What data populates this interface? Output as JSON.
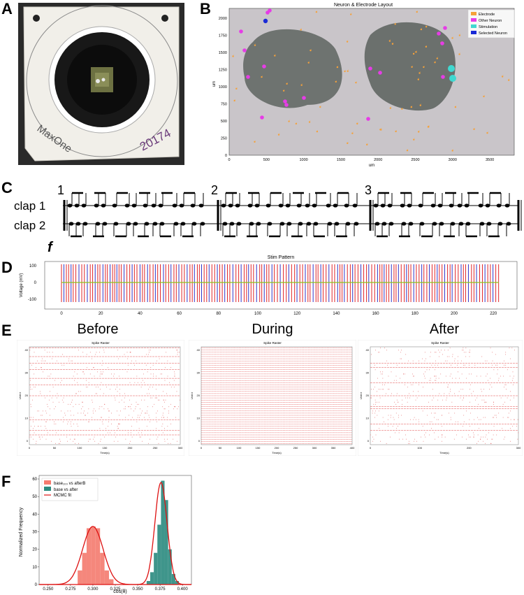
{
  "panels": {
    "a": "A",
    "b": "B",
    "c": "C",
    "d": "D",
    "e": "E",
    "f": "F"
  },
  "chip": {
    "brand": "MaxOne",
    "serial": "20174"
  },
  "layout_plot": {
    "title": "Neuron & Electrode Layout",
    "xlabel": "um",
    "ylabel": "um",
    "xticks": [
      "0",
      "500",
      "1000",
      "1500",
      "2000",
      "2500",
      "3000",
      "3500"
    ],
    "yticks": [
      "0",
      "250",
      "500",
      "750",
      "1000",
      "1250",
      "1500",
      "1750",
      "2000"
    ],
    "legend": [
      {
        "label": "Electrode",
        "color": "#f5a13a"
      },
      {
        "label": "Other Neuron",
        "color": "#e63ce6"
      },
      {
        "label": "Stimulation",
        "color": "#40d8d0"
      },
      {
        "label": "Selected Neuron",
        "color": "#1a2ad6"
      }
    ]
  },
  "score": {
    "section_numbers": [
      "1",
      "2",
      "3"
    ],
    "staff1_label": "clap  1",
    "staff2_label": "clap  2",
    "dynamic": "f"
  },
  "stim_plot": {
    "title": "Stim Pattern",
    "ylabel": "Voltage (mV)",
    "yticks": [
      "100",
      "0",
      "-100"
    ],
    "xticks": [
      "0",
      "20",
      "40",
      "60",
      "80",
      "100",
      "120",
      "140",
      "160",
      "180",
      "200",
      "220"
    ]
  },
  "rasters": {
    "before": {
      "heading": "Before",
      "title": "Spike Raster",
      "xlabel": "Time(s)",
      "ylabel": "Unit #",
      "xticks": [
        "0",
        "50",
        "100",
        "150",
        "200",
        "250",
        "300"
      ],
      "yticks": [
        "40",
        "30",
        "20",
        "10",
        "0"
      ]
    },
    "during": {
      "heading": "During",
      "title": "Spike Raster",
      "xlabel": "Time(s)",
      "ylabel": "Unit #",
      "xticks": [
        "0",
        "50",
        "100",
        "150",
        "200",
        "250",
        "300",
        "350",
        "400"
      ],
      "yticks": [
        "40",
        "30",
        "20",
        "10",
        "0"
      ]
    },
    "after": {
      "heading": "After",
      "title": "Spike Raster",
      "xlabel": "Time(s)",
      "ylabel": "Unit #",
      "xticks": [
        "0",
        "100",
        "200",
        "300"
      ],
      "yticks": [
        "40",
        "30",
        "20",
        "10",
        "0"
      ]
    }
  },
  "chart_data": {
    "type": "bar",
    "title": "",
    "xlabel": "cos(θ)",
    "ylabel": "Normalized Frequency",
    "xlim": [
      0.24,
      0.41
    ],
    "ylim": [
      0,
      62
    ],
    "xticks": [
      "0.250",
      "0.275",
      "0.300",
      "0.325",
      "0.350",
      "0.375",
      "0.400"
    ],
    "yticks": [
      "0",
      "10",
      "20",
      "30",
      "40",
      "50",
      "60"
    ],
    "legend": [
      "base₁₀₀ vs afterB",
      "base vs after",
      "MCMC fit"
    ],
    "series": [
      {
        "name": "base₁₀₀ vs afterB",
        "color": "#f47a6e",
        "bins": [
          0.283,
          0.288,
          0.293,
          0.298,
          0.303,
          0.308,
          0.313,
          0.318
        ],
        "values": [
          8,
          18,
          32,
          33,
          32,
          18,
          8,
          3
        ]
      },
      {
        "name": "base vs after",
        "color": "#2a8a7e",
        "bins": [
          0.36,
          0.364,
          0.368,
          0.372,
          0.376,
          0.38,
          0.384,
          0.388,
          0.392
        ],
        "values": [
          2,
          7,
          18,
          34,
          59,
          48,
          20,
          6,
          2
        ]
      }
    ],
    "fits": [
      {
        "name": "MCMC fit",
        "mean": 0.3,
        "sd": 0.0115,
        "peak": 33,
        "color": "#dd1111"
      },
      {
        "name": "MCMC fit",
        "mean": 0.376,
        "sd": 0.0068,
        "peak": 58,
        "color": "#dd1111"
      }
    ]
  }
}
